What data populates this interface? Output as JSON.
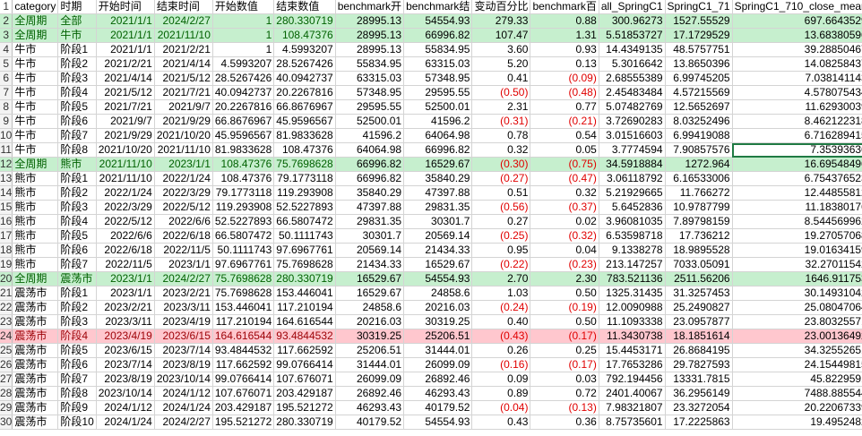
{
  "headers": [
    "category",
    "时期",
    "开始时间",
    "结束时间",
    "开始数值",
    "结束数值",
    "benchmark开",
    "benchmark结",
    "变动百分比",
    "benchmark百",
    "all_SpringC1",
    "SpringC1_71",
    "SpringC1_710_close_mean"
  ],
  "rows": [
    {
      "n": "2",
      "style": "g",
      "cells": [
        "全周期",
        "全部",
        "2021/1/1",
        "2024/2/27",
        "1",
        "280.330719",
        "28995.13",
        "54554.93",
        "279.33",
        "0.88",
        "300.96273",
        "1527.55529",
        "697.6643529"
      ]
    },
    {
      "n": "3",
      "style": "g",
      "cells": [
        "全周期",
        "牛市",
        "2021/1/1",
        "2021/11/10",
        "1",
        "108.47376",
        "28995.13",
        "66996.82",
        "107.47",
        "1.31",
        "5.51853727",
        "17.1729529",
        "13.68380596"
      ]
    },
    {
      "n": "4",
      "style": "",
      "cells": [
        "牛市",
        "阶段1",
        "2021/1/1",
        "2021/2/21",
        "1",
        "4.5993207",
        "28995.13",
        "55834.95",
        "3.60",
        "0.93",
        "14.4349135",
        "48.5757751",
        "39.28850467"
      ]
    },
    {
      "n": "5",
      "style": "",
      "cells": [
        "牛市",
        "阶段2",
        "2021/2/21",
        "2021/4/14",
        "4.5993207",
        "28.5267426",
        "55834.95",
        "63315.03",
        "5.20",
        "0.13",
        "5.3016642",
        "13.8650396",
        "14.08258437"
      ]
    },
    {
      "n": "6",
      "style": "",
      "cells": [
        "牛市",
        "阶段3",
        "2021/4/14",
        "2021/5/12",
        "28.5267426",
        "40.0942737",
        "63315.03",
        "57348.95",
        "0.41",
        "(0.09)",
        "2.68555389",
        "6.99745205",
        "7.038141143"
      ]
    },
    {
      "n": "7",
      "style": "",
      "cells": [
        "牛市",
        "阶段4",
        "2021/5/12",
        "2021/7/21",
        "40.0942737",
        "20.2267816",
        "57348.95",
        "29595.55",
        "(0.50)",
        "(0.48)",
        "2.45483484",
        "4.57215569",
        "4.578075434"
      ]
    },
    {
      "n": "8",
      "style": "",
      "cells": [
        "牛市",
        "阶段5",
        "2021/7/21",
        "2021/9/7",
        "20.2267816",
        "66.8676967",
        "29595.55",
        "52500.01",
        "2.31",
        "0.77",
        "5.07482769",
        "12.5652697",
        "11.62930039"
      ]
    },
    {
      "n": "9",
      "style": "",
      "cells": [
        "牛市",
        "阶段6",
        "2021/9/7",
        "2021/9/29",
        "66.8676967",
        "45.9596567",
        "52500.01",
        "41596.2",
        "(0.31)",
        "(0.21)",
        "3.72690283",
        "8.03252496",
        "8.462122318"
      ]
    },
    {
      "n": "10",
      "style": "",
      "cells": [
        "牛市",
        "阶段7",
        "2021/9/29",
        "2021/10/20",
        "45.9596567",
        "81.9833628",
        "41596.2",
        "64064.98",
        "0.78",
        "0.54",
        "3.01516603",
        "6.99419088",
        "6.716289415"
      ]
    },
    {
      "n": "11",
      "style": "",
      "cells": [
        "牛市",
        "阶段8",
        "2021/10/20",
        "2021/11/10",
        "81.9833628",
        "108.47376",
        "64064.98",
        "66996.82",
        "0.32",
        "0.05",
        "3.7774594",
        "7.90857576",
        "7.35393636"
      ]
    },
    {
      "n": "12",
      "style": "g",
      "cells": [
        "全周期",
        "熊市",
        "2021/11/10",
        "2023/1/1",
        "108.47376",
        "75.7698628",
        "66996.82",
        "16529.67",
        "(0.30)",
        "(0.75)",
        "34.5918884",
        "1272.964",
        "16.69548496"
      ]
    },
    {
      "n": "13",
      "style": "",
      "cells": [
        "熊市",
        "阶段1",
        "2021/11/10",
        "2022/1/24",
        "108.47376",
        "79.1773118",
        "66996.82",
        "35840.29",
        "(0.27)",
        "(0.47)",
        "3.06118792",
        "6.16533006",
        "6.754376523"
      ]
    },
    {
      "n": "14",
      "style": "",
      "cells": [
        "熊市",
        "阶段2",
        "2022/1/24",
        "2022/3/29",
        "79.1773118",
        "119.293908",
        "35840.29",
        "47397.88",
        "0.51",
        "0.32",
        "5.21929665",
        "11.766272",
        "12.44855812"
      ]
    },
    {
      "n": "15",
      "style": "",
      "cells": [
        "熊市",
        "阶段3",
        "2022/3/29",
        "2022/5/12",
        "119.293908",
        "52.5227893",
        "47397.88",
        "29831.35",
        "(0.56)",
        "(0.37)",
        "5.6452836",
        "10.9787799",
        "11.18380176"
      ]
    },
    {
      "n": "16",
      "style": "",
      "cells": [
        "熊市",
        "阶段4",
        "2022/5/12",
        "2022/6/6",
        "52.5227893",
        "66.5807472",
        "29831.35",
        "30301.7",
        "0.27",
        "0.02",
        "3.96081035",
        "7.89798159",
        "8.544569962"
      ]
    },
    {
      "n": "17",
      "style": "",
      "cells": [
        "熊市",
        "阶段5",
        "2022/6/6",
        "2022/6/18",
        "66.5807472",
        "50.1111743",
        "30301.7",
        "20569.14",
        "(0.25)",
        "(0.32)",
        "6.53598718",
        "17.736212",
        "19.27057068"
      ]
    },
    {
      "n": "18",
      "style": "",
      "cells": [
        "熊市",
        "阶段6",
        "2022/6/18",
        "2022/11/5",
        "50.1111743",
        "97.6967761",
        "20569.14",
        "21434.33",
        "0.95",
        "0.04",
        "9.1338278",
        "18.9895528",
        "19.01634159"
      ]
    },
    {
      "n": "19",
      "style": "",
      "cells": [
        "熊市",
        "阶段7",
        "2022/11/5",
        "2023/1/1",
        "97.6967761",
        "75.7698628",
        "21434.33",
        "16529.67",
        "(0.22)",
        "(0.23)",
        "213.147257",
        "7033.05091",
        "32.27011542"
      ]
    },
    {
      "n": "20",
      "style": "g",
      "cells": [
        "全周期",
        "震荡市",
        "2023/1/1",
        "2024/2/27",
        "75.7698628",
        "280.330719",
        "16529.67",
        "54554.93",
        "2.70",
        "2.30",
        "783.521136",
        "2511.56206",
        "1646.911753"
      ]
    },
    {
      "n": "21",
      "style": "",
      "cells": [
        "震荡市",
        "阶段1",
        "2023/1/1",
        "2023/2/21",
        "75.7698628",
        "153.446041",
        "16529.67",
        "24858.6",
        "1.03",
        "0.50",
        "1325.31435",
        "31.3257453",
        "30.14931042"
      ]
    },
    {
      "n": "22",
      "style": "",
      "cells": [
        "震荡市",
        "阶段2",
        "2023/2/21",
        "2023/3/11",
        "153.446041",
        "117.210194",
        "24858.6",
        "20216.03",
        "(0.24)",
        "(0.19)",
        "12.0090988",
        "25.2490827",
        "25.08047064"
      ]
    },
    {
      "n": "23",
      "style": "",
      "cells": [
        "震荡市",
        "阶段3",
        "2023/3/11",
        "2023/4/19",
        "117.210194",
        "164.616544",
        "20216.03",
        "30319.25",
        "0.40",
        "0.50",
        "11.1093338",
        "23.0957877",
        "23.80325571"
      ]
    },
    {
      "n": "24",
      "style": "p",
      "cells": [
        "震荡市",
        "阶段4",
        "2023/4/19",
        "2023/6/15",
        "164.616544",
        "93.4844532",
        "30319.25",
        "25206.51",
        "(0.43)",
        "(0.17)",
        "11.3430738",
        "18.1851614",
        "23.00136492"
      ]
    },
    {
      "n": "25",
      "style": "",
      "cells": [
        "震荡市",
        "阶段5",
        "2023/6/15",
        "2023/7/14",
        "93.4844532",
        "117.662592",
        "25206.51",
        "31444.01",
        "0.26",
        "0.25",
        "15.4453171",
        "26.8684195",
        "34.32552651"
      ]
    },
    {
      "n": "26",
      "style": "",
      "cells": [
        "震荡市",
        "阶段6",
        "2023/7/14",
        "2023/8/19",
        "117.662592",
        "99.0766414",
        "31444.01",
        "26099.09",
        "(0.16)",
        "(0.17)",
        "17.7653286",
        "29.7827593",
        "24.15449815"
      ]
    },
    {
      "n": "27",
      "style": "",
      "cells": [
        "震荡市",
        "阶段7",
        "2023/8/19",
        "2023/10/14",
        "99.0766414",
        "107.676071",
        "26099.09",
        "26892.46",
        "0.09",
        "0.03",
        "792.194456",
        "13331.7815",
        "45.8229591"
      ]
    },
    {
      "n": "28",
      "style": "",
      "cells": [
        "震荡市",
        "阶段8",
        "2023/10/14",
        "2024/1/12",
        "107.676071",
        "203.429187",
        "26892.46",
        "46293.43",
        "0.89",
        "0.72",
        "2401.40067",
        "36.2956149",
        "7488.885544"
      ]
    },
    {
      "n": "29",
      "style": "",
      "cells": [
        "震荡市",
        "阶段9",
        "2024/1/12",
        "2024/1/24",
        "203.429187",
        "195.521272",
        "46293.43",
        "40179.52",
        "(0.04)",
        "(0.13)",
        "7.98321807",
        "23.3272054",
        "20.22067339"
      ]
    },
    {
      "n": "30",
      "style": "",
      "cells": [
        "震荡市",
        "阶段10",
        "2024/1/24",
        "2024/2/27",
        "195.521272",
        "280.330719",
        "40179.52",
        "54554.93",
        "0.43",
        "0.36",
        "8.75735601",
        "17.2225863",
        "19.4952482"
      ]
    }
  ]
}
